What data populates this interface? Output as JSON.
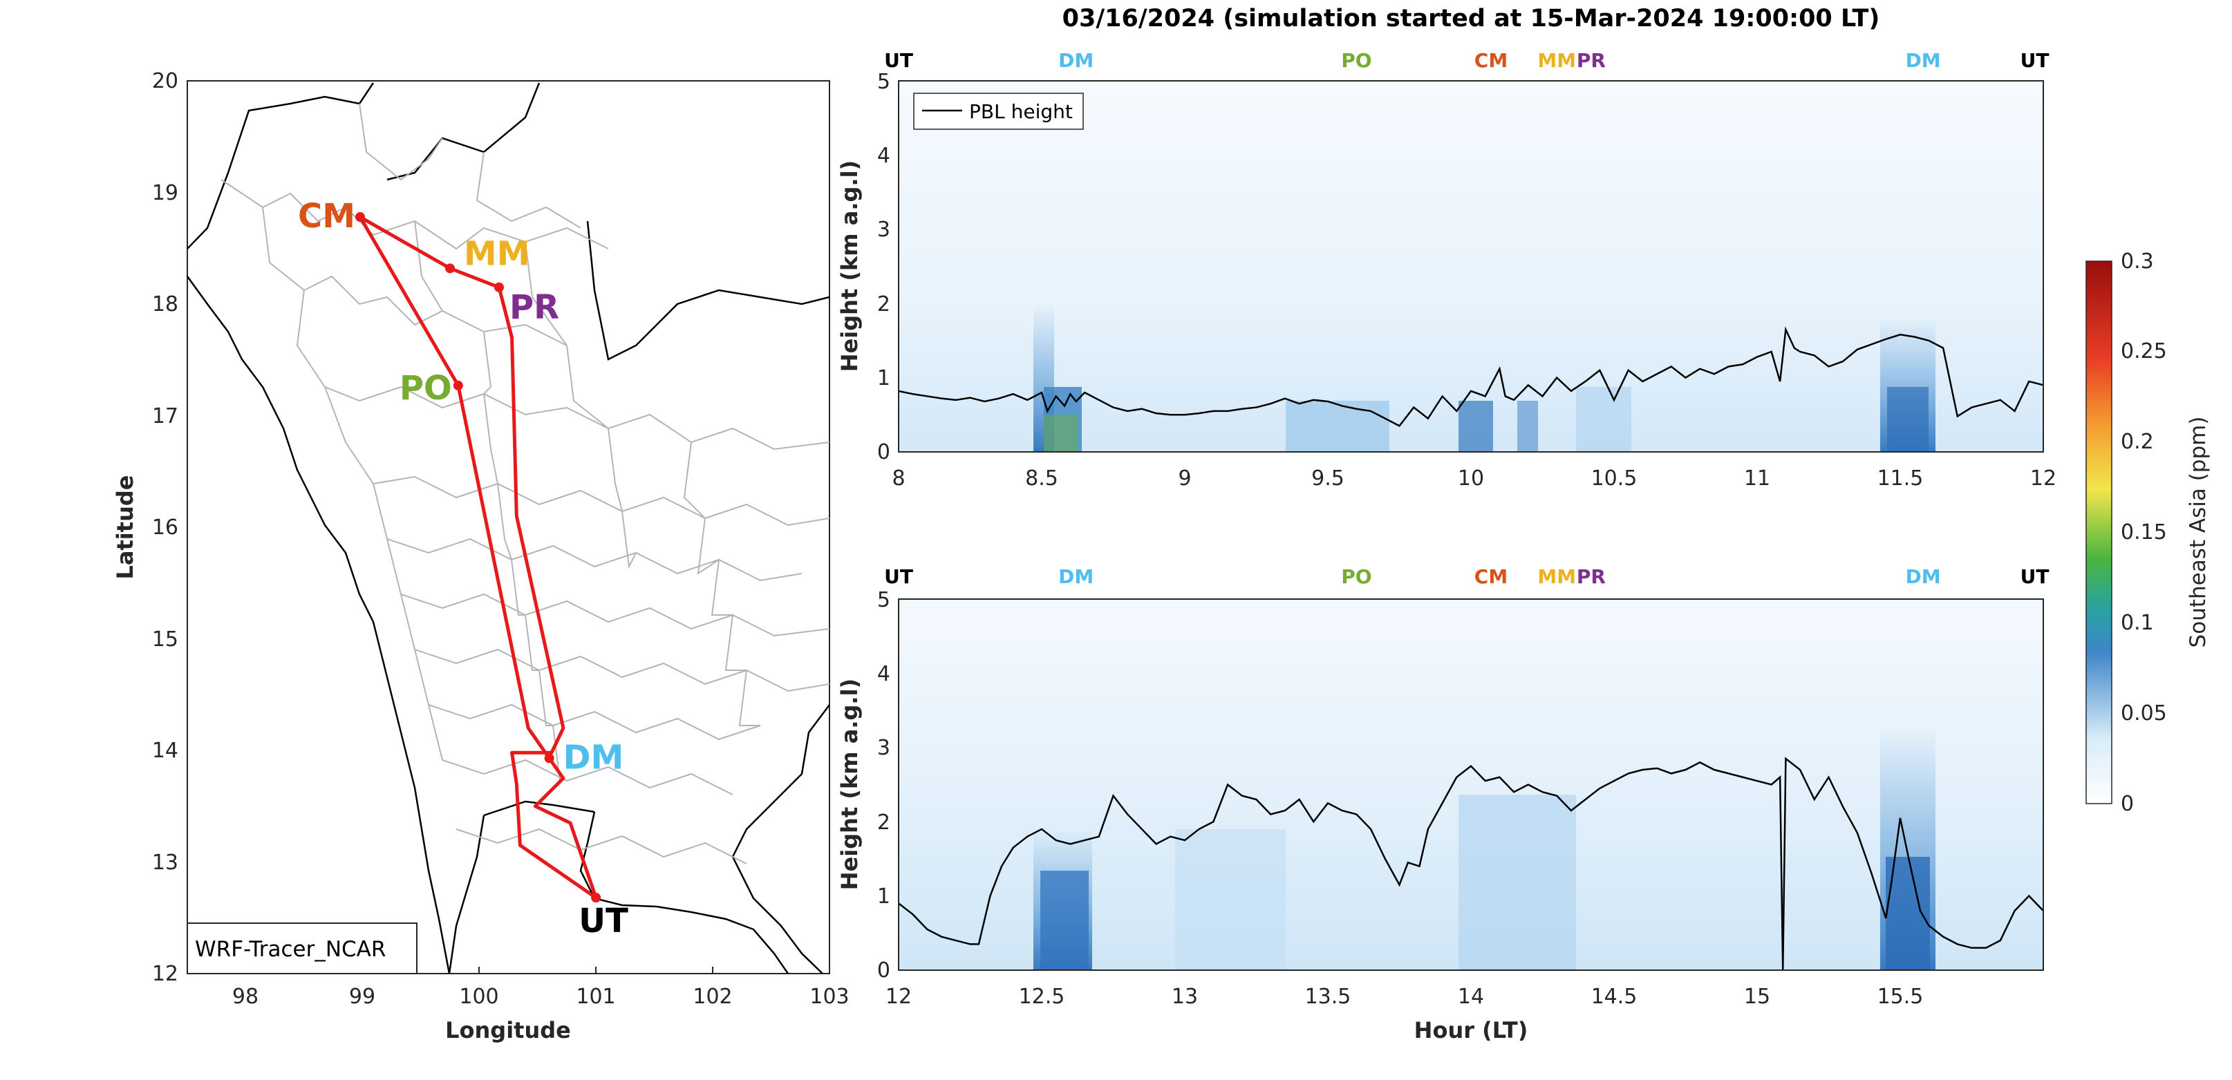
{
  "title": "03/16/2024 (simulation started at 15-Mar-2024 19:00:00 LT)",
  "colors": {
    "route": "#e8191b",
    "CM": "#d95319",
    "MM": "#edb120",
    "PR": "#7e2f8e",
    "PO": "#77ac30",
    "DM": "#4dbeee",
    "UT": "#000000"
  },
  "map": {
    "xlabel": "Longitude",
    "ylabel": "Latitude",
    "xlim": [
      97.5,
      103
    ],
    "ylim": [
      12,
      20
    ],
    "xticks": [
      "98",
      "99",
      "100",
      "101",
      "102",
      "103"
    ],
    "yticks": [
      "12",
      "13",
      "14",
      "15",
      "16",
      "17",
      "18",
      "19",
      "20"
    ],
    "model_label": "WRF-Tracer_NCAR",
    "sites": [
      {
        "code": "CM",
        "lon": 98.98,
        "lat": 18.78
      },
      {
        "code": "MM",
        "lon": 99.75,
        "lat": 18.32
      },
      {
        "code": "PR",
        "lon": 100.17,
        "lat": 18.15
      },
      {
        "code": "PO",
        "lon": 99.82,
        "lat": 17.27
      },
      {
        "code": "DM",
        "lon": 100.6,
        "lat": 13.93
      },
      {
        "code": "UT",
        "lon": 101.0,
        "lat": 12.68
      }
    ],
    "route": [
      [
        101.0,
        12.68
      ],
      [
        100.35,
        13.15
      ],
      [
        100.32,
        13.7
      ],
      [
        100.28,
        13.98
      ],
      [
        100.62,
        13.98
      ],
      [
        100.72,
        14.2
      ],
      [
        100.32,
        16.1
      ],
      [
        100.28,
        17.7
      ],
      [
        100.17,
        18.15
      ],
      [
        99.75,
        18.32
      ],
      [
        98.98,
        18.78
      ],
      [
        99.82,
        17.27
      ],
      [
        100.42,
        14.2
      ],
      [
        100.6,
        13.93
      ],
      [
        100.72,
        13.75
      ],
      [
        100.48,
        13.5
      ],
      [
        100.78,
        13.35
      ],
      [
        101.0,
        12.68
      ]
    ]
  },
  "panel_top": {
    "xlim": [
      8,
      12
    ],
    "ylim": [
      0,
      5
    ],
    "xticks": [
      "8",
      "8.5",
      "9",
      "9.5",
      "10",
      "10.5",
      "11",
      "11.5",
      "12"
    ],
    "yticks": [
      "0",
      "1",
      "2",
      "3",
      "4",
      "5"
    ],
    "ylabel": "Height (km a.g.l)",
    "legend": "PBL height",
    "site_markers": [
      {
        "code": "UT",
        "hour": 8.0
      },
      {
        "code": "DM",
        "hour": 8.62
      },
      {
        "code": "PO",
        "hour": 9.6
      },
      {
        "code": "CM",
        "hour": 10.07
      },
      {
        "code": "MM",
        "hour": 10.3
      },
      {
        "code": "PR",
        "hour": 10.42
      },
      {
        "code": "DM",
        "hour": 11.58
      },
      {
        "code": "UT",
        "hour": 11.97
      }
    ]
  },
  "panel_bottom": {
    "xlim": [
      12,
      16
    ],
    "ylim": [
      0,
      5
    ],
    "xticks": [
      "12",
      "12.5",
      "13",
      "13.5",
      "14",
      "14.5",
      "15",
      "15.5"
    ],
    "yticks": [
      "0",
      "1",
      "2",
      "3",
      "4",
      "5"
    ],
    "ylabel": "Height (km a.g.l)",
    "xlabel": "Hour (LT)",
    "site_markers": [
      {
        "code": "UT",
        "hour": 12.0
      },
      {
        "code": "DM",
        "hour": 12.62
      },
      {
        "code": "PO",
        "hour": 13.6
      },
      {
        "code": "CM",
        "hour": 14.07
      },
      {
        "code": "MM",
        "hour": 14.3
      },
      {
        "code": "PR",
        "hour": 14.42
      },
      {
        "code": "DM",
        "hour": 15.58
      },
      {
        "code": "UT",
        "hour": 15.97
      }
    ]
  },
  "colorbar": {
    "label": "Southeast Asia (ppm)",
    "ticks": [
      "0",
      "0.05",
      "0.1",
      "0.15",
      "0.2",
      "0.25",
      "0.3"
    ],
    "range": [
      0,
      0.3
    ]
  },
  "chart_data": [
    {
      "type": "line",
      "title": "",
      "xlabel": "Longitude",
      "ylabel": "Latitude",
      "xlim": [
        97.5,
        103
      ],
      "ylim": [
        12,
        20
      ],
      "series": [
        {
          "name": "",
          "x": [
            101.0,
            100.35,
            100.32,
            100.28,
            100.62,
            100.72,
            100.32,
            100.28,
            100.17,
            99.75,
            98.98,
            99.82,
            100.42,
            100.6,
            100.72,
            100.48,
            100.78,
            101.0
          ],
          "y": [
            12.68,
            13.15,
            13.7,
            13.98,
            13.98,
            14.2,
            16.1,
            17.7,
            18.15,
            18.32,
            18.78,
            17.27,
            14.2,
            13.93,
            13.75,
            13.5,
            13.35,
            12.68
          ]
        }
      ]
    },
    {
      "type": "line",
      "title": "",
      "xlabel": "",
      "ylabel": "Height (km a.g.l)",
      "xlim": [
        8,
        12
      ],
      "ylim": [
        0,
        5
      ],
      "series": [
        {
          "name": "PBL height",
          "x": [
            8.0,
            8.05,
            8.1,
            8.15,
            8.2,
            8.25,
            8.3,
            8.35,
            8.4,
            8.45,
            8.5,
            8.52,
            8.55,
            8.58,
            8.6,
            8.62,
            8.65,
            8.7,
            8.75,
            8.8,
            8.85,
            8.9,
            8.95,
            9.0,
            9.05,
            9.1,
            9.15,
            9.2,
            9.25,
            9.3,
            9.35,
            9.4,
            9.45,
            9.5,
            9.55,
            9.6,
            9.65,
            9.7,
            9.75,
            9.8,
            9.85,
            9.9,
            9.95,
            10.0,
            10.05,
            10.1,
            10.12,
            10.15,
            10.2,
            10.25,
            10.3,
            10.35,
            10.4,
            10.45,
            10.5,
            10.55,
            10.6,
            10.65,
            10.7,
            10.75,
            10.8,
            10.85,
            10.9,
            10.95,
            11.0,
            11.05,
            11.08,
            11.1,
            11.13,
            11.15,
            11.2,
            11.25,
            11.3,
            11.35,
            11.4,
            11.45,
            11.5,
            11.55,
            11.6,
            11.65,
            11.7,
            11.75,
            11.8,
            11.85,
            11.9,
            11.95,
            12.0
          ],
          "y": [
            0.82,
            0.78,
            0.75,
            0.72,
            0.7,
            0.73,
            0.68,
            0.72,
            0.78,
            0.7,
            0.8,
            0.55,
            0.75,
            0.62,
            0.78,
            0.68,
            0.8,
            0.7,
            0.6,
            0.55,
            0.58,
            0.52,
            0.5,
            0.5,
            0.52,
            0.55,
            0.55,
            0.58,
            0.6,
            0.65,
            0.72,
            0.65,
            0.7,
            0.68,
            0.62,
            0.58,
            0.55,
            0.45,
            0.35,
            0.6,
            0.45,
            0.75,
            0.55,
            0.82,
            0.75,
            1.12,
            0.75,
            0.7,
            0.9,
            0.75,
            1.0,
            0.82,
            0.95,
            1.1,
            0.7,
            1.1,
            0.95,
            1.05,
            1.15,
            1.0,
            1.12,
            1.05,
            1.15,
            1.18,
            1.28,
            1.35,
            0.95,
            1.65,
            1.4,
            1.35,
            1.3,
            1.15,
            1.22,
            1.38,
            1.45,
            1.52,
            1.58,
            1.55,
            1.5,
            1.4,
            0.48,
            0.6,
            0.65,
            0.7,
            0.55,
            0.95,
            0.9
          ]
        },
        {
          "name": "",
          "values_note": ""
        }
      ]
    },
    {
      "type": "line",
      "title": "",
      "xlabel": "Hour (LT)",
      "ylabel": "Height (km a.g.l)",
      "xlim": [
        12,
        16
      ],
      "ylim": [
        0,
        5
      ],
      "series": [
        {
          "name": "PBL height",
          "x": [
            12.0,
            12.05,
            12.1,
            12.15,
            12.2,
            12.25,
            12.28,
            12.32,
            12.36,
            12.4,
            12.45,
            12.5,
            12.55,
            12.6,
            12.65,
            12.7,
            12.75,
            12.8,
            12.85,
            12.9,
            12.95,
            13.0,
            13.05,
            13.1,
            13.15,
            13.2,
            13.25,
            13.3,
            13.35,
            13.4,
            13.45,
            13.5,
            13.55,
            13.6,
            13.65,
            13.7,
            13.75,
            13.78,
            13.82,
            13.85,
            13.9,
            13.95,
            14.0,
            14.05,
            14.1,
            14.15,
            14.2,
            14.25,
            14.3,
            14.35,
            14.4,
            14.45,
            14.5,
            14.55,
            14.6,
            14.65,
            14.7,
            14.75,
            14.8,
            14.85,
            14.9,
            14.95,
            15.0,
            15.05,
            15.08,
            15.09,
            15.1,
            15.15,
            15.2,
            15.25,
            15.3,
            15.35,
            15.4,
            15.45,
            15.47,
            15.5,
            15.53,
            15.57,
            15.6,
            15.65,
            15.7,
            15.75,
            15.8,
            15.85,
            15.9,
            15.95,
            16.0
          ],
          "y": [
            0.9,
            0.75,
            0.55,
            0.45,
            0.4,
            0.35,
            0.35,
            1.0,
            1.4,
            1.65,
            1.8,
            1.9,
            1.75,
            1.7,
            1.75,
            1.8,
            2.35,
            2.1,
            1.9,
            1.7,
            1.8,
            1.75,
            1.9,
            2.0,
            2.5,
            2.35,
            2.3,
            2.1,
            2.15,
            2.3,
            2.0,
            2.25,
            2.15,
            2.1,
            1.9,
            1.5,
            1.15,
            1.45,
            1.4,
            1.9,
            2.25,
            2.6,
            2.75,
            2.55,
            2.6,
            2.4,
            2.5,
            2.4,
            2.35,
            2.15,
            2.3,
            2.45,
            2.55,
            2.65,
            2.7,
            2.72,
            2.65,
            2.7,
            2.8,
            2.7,
            2.65,
            2.6,
            2.55,
            2.5,
            2.6,
            0.0,
            2.85,
            2.7,
            2.3,
            2.6,
            2.2,
            1.85,
            1.3,
            0.7,
            1.2,
            2.05,
            1.5,
            0.8,
            0.6,
            0.45,
            0.35,
            0.3,
            0.3,
            0.4,
            0.8,
            1.0,
            0.8
          ]
        }
      ]
    }
  ]
}
